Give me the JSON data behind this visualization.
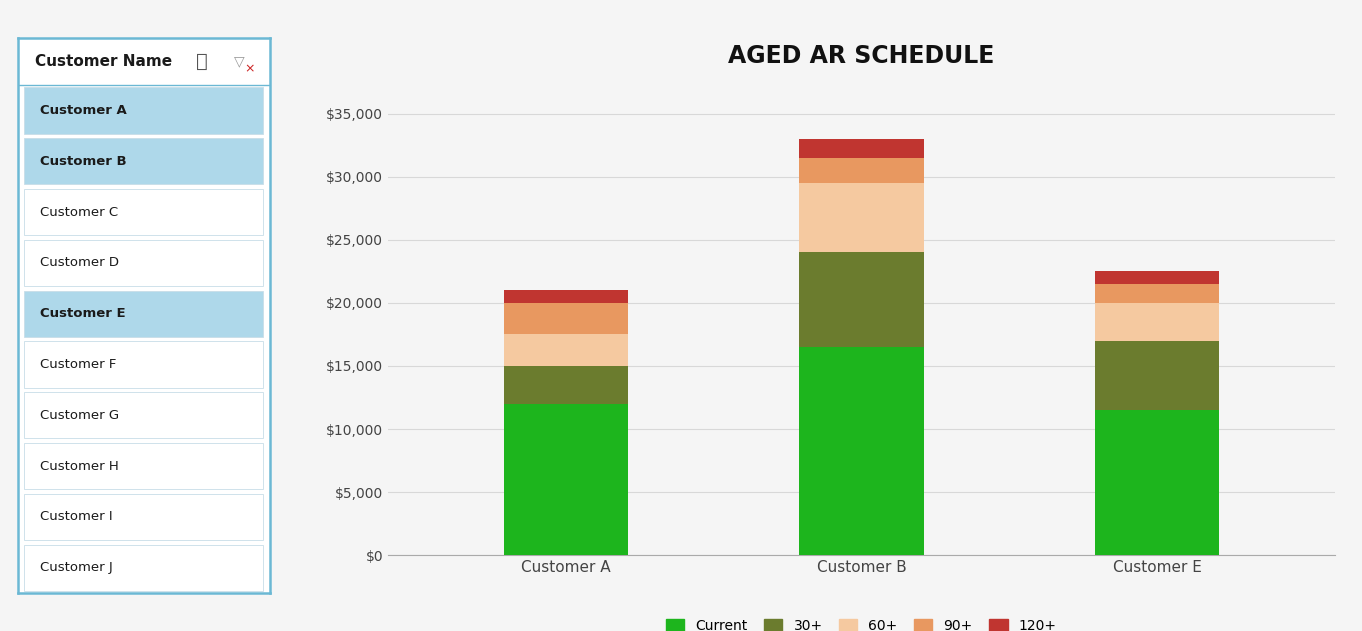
{
  "title": "AGED AR SCHEDULE",
  "customers": [
    "Customer A",
    "Customer B",
    "Customer E"
  ],
  "series": {
    "Current": [
      12000,
      16500,
      11500
    ],
    "30+": [
      3000,
      7500,
      5500
    ],
    "60+": [
      2500,
      5500,
      3000
    ],
    "90+": [
      2500,
      2000,
      1500
    ],
    "120+": [
      1000,
      1500,
      1000
    ]
  },
  "colors": {
    "Current": "#1db51d",
    "30+": "#6b7c2e",
    "60+": "#f5c9a0",
    "90+": "#e89860",
    "120+": "#c03530"
  },
  "ylim": [
    0,
    37000
  ],
  "yticks": [
    0,
    5000,
    10000,
    15000,
    20000,
    25000,
    30000,
    35000
  ],
  "background_color": "#f5f5f5",
  "chart_bg": "#f5f5f5",
  "grid_color": "#d8d8d8",
  "title_fontsize": 17,
  "tick_fontsize": 10,
  "legend_fontsize": 10,
  "bar_width": 0.42,
  "slicer": {
    "title": "Customer Name",
    "items": [
      "Customer A",
      "Customer B",
      "Customer C",
      "Customer D",
      "Customer E",
      "Customer F",
      "Customer G",
      "Customer H",
      "Customer I",
      "Customer J"
    ],
    "selected": [
      "Customer A",
      "Customer B",
      "Customer E"
    ],
    "selected_color": "#aed8ea",
    "unselected_color": "#ffffff",
    "border_color": "#c8dde8",
    "title_color": "#1a1a1a",
    "item_text_color": "#1a1a1a",
    "box_border": "#6bb8d4",
    "header_bg": "#ffffff"
  }
}
